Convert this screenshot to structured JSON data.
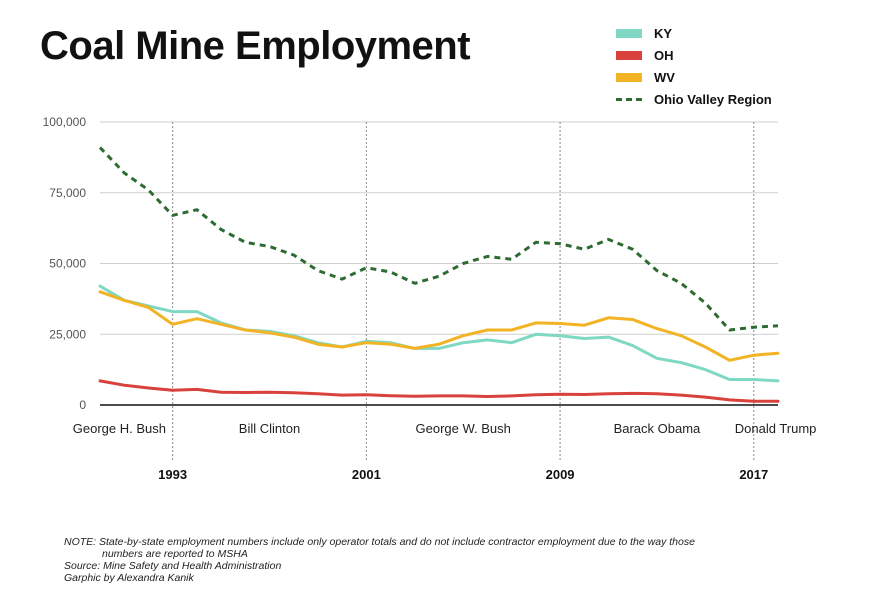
{
  "chart_data": {
    "type": "line",
    "title": "Coal Mine Employment",
    "x": [
      1990,
      1991,
      1992,
      1993,
      1994,
      1995,
      1996,
      1997,
      1998,
      1999,
      2000,
      2001,
      2002,
      2003,
      2004,
      2005,
      2006,
      2007,
      2008,
      2009,
      2010,
      2011,
      2012,
      2013,
      2014,
      2015,
      2016,
      2017,
      2018
    ],
    "series": [
      {
        "name": "KY",
        "color": "#7fd8c3",
        "values": [
          42000,
          37000,
          35000,
          33000,
          33000,
          29000,
          26500,
          26000,
          24500,
          22000,
          20500,
          22500,
          22000,
          20000,
          20000,
          22000,
          23000,
          22000,
          25000,
          24500,
          23500,
          24000,
          21000,
          16500,
          15000,
          12500,
          9000,
          9000,
          8500
        ]
      },
      {
        "name": "OH",
        "color": "#d9413c",
        "values": [
          8500,
          7000,
          6000,
          5200,
          5500,
          4500,
          4400,
          4500,
          4300,
          4000,
          3500,
          3600,
          3300,
          3100,
          3200,
          3200,
          3000,
          3200,
          3600,
          3800,
          3700,
          4000,
          4100,
          4000,
          3500,
          2800,
          1800,
          1300,
          1300
        ]
      },
      {
        "name": "WV",
        "color": "#f2b324",
        "values": [
          40000,
          37000,
          34500,
          28500,
          30500,
          28500,
          26500,
          25500,
          24000,
          21500,
          20500,
          22000,
          21500,
          20000,
          21500,
          24500,
          26500,
          26500,
          29000,
          28800,
          28200,
          30800,
          30200,
          27000,
          24500,
          20500,
          15800,
          17600,
          18300
        ]
      },
      {
        "name": "Ohio Valley Region",
        "color": "#2e6b33",
        "dashed": true,
        "values": [
          91000,
          82000,
          76000,
          67000,
          69000,
          62000,
          57500,
          56000,
          53000,
          47500,
          44500,
          48500,
          47000,
          43000,
          45500,
          50000,
          52500,
          51500,
          57500,
          57000,
          55000,
          58500,
          55000,
          47500,
          43000,
          36000,
          26500,
          27500,
          28000
        ]
      }
    ],
    "y_ticks": [
      "100,000",
      "75,000",
      "50,000",
      "25,000",
      "0"
    ],
    "y_tick_values": [
      100000,
      75000,
      50000,
      25000,
      0
    ],
    "ylim": [
      0,
      100000
    ],
    "xlim": [
      1990,
      2018
    ],
    "x_ticks": [
      {
        "label": "1993",
        "value": 1993
      },
      {
        "label": "2001",
        "value": 2001
      },
      {
        "label": "2009",
        "value": 2009
      },
      {
        "label": "2017",
        "value": 2017
      }
    ],
    "presidents": [
      {
        "label": "George H. Bush",
        "center": 1990.8
      },
      {
        "label": "Bill Clinton",
        "center": 1997.0
      },
      {
        "label": "George W. Bush",
        "center": 2005.0
      },
      {
        "label": "Barack Obama",
        "center": 2013.0
      },
      {
        "label": "Donald Trump",
        "center": 2017.9
      }
    ],
    "legend_position": "top-right"
  },
  "notes": {
    "line1": "NOTE: State-by-state employment numbers include only operator totals and do not include contractor employment due to the way those",
    "line2": "numbers are reported to MSHA",
    "source": "Source: Mine Safety and Health Administration",
    "credit": "Garphic by Alexandra Kanik"
  }
}
